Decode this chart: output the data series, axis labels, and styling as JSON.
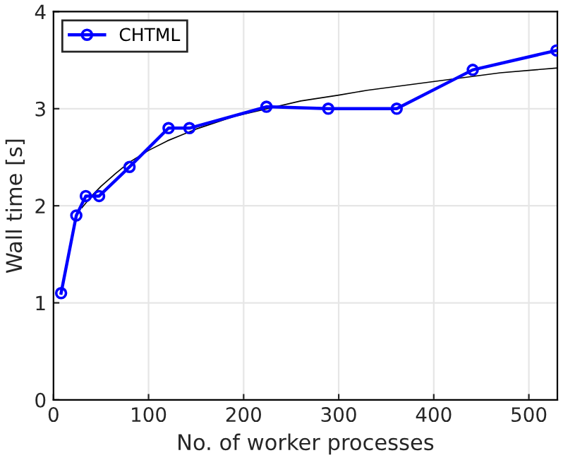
{
  "chart_data": {
    "type": "line",
    "xlabel": "No. of worker processes",
    "ylabel": "Wall time [s]",
    "xlim": [
      0,
      530
    ],
    "xticks": [
      0,
      100,
      200,
      300,
      400,
      500
    ],
    "ylim": [
      0,
      4
    ],
    "yticks": [
      0,
      1,
      2,
      3,
      4
    ],
    "grid": true,
    "legend": "top left",
    "series": [
      {
        "name": "CHTML",
        "color": "#0000ff",
        "marker": "circle",
        "x": [
          8,
          24,
          34,
          48,
          80,
          121,
          143,
          224,
          289,
          361,
          441,
          529
        ],
        "values": [
          1.1,
          1.9,
          2.1,
          2.1,
          2.4,
          2.8,
          2.8,
          3.02,
          3.0,
          3.0,
          3.4,
          3.6
        ]
      },
      {
        "type": "line",
        "color": "#000000",
        "marker": "none",
        "x": [
          30,
          40,
          50,
          65,
          80,
          100,
          120,
          150,
          190,
          260,
          300,
          330,
          470,
          530
        ],
        "values": [
          1.98,
          2.1,
          2.2,
          2.33,
          2.45,
          2.57,
          2.67,
          2.79,
          2.92,
          3.08,
          3.14,
          3.19,
          3.37,
          3.42
        ]
      }
    ]
  }
}
